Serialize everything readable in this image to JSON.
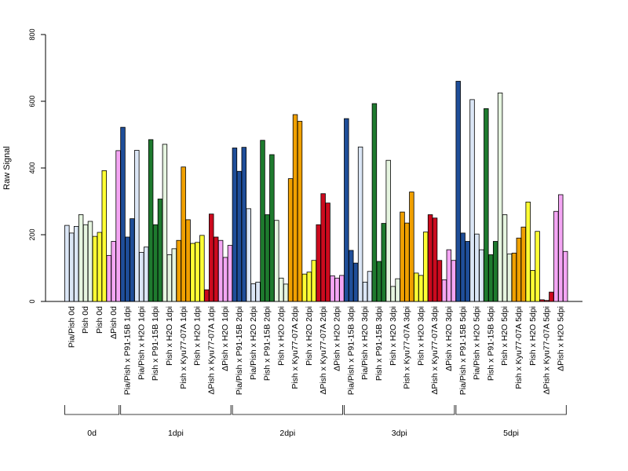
{
  "chart_data": {
    "type": "bar",
    "ylabel": "Raw Signal",
    "ylim": [
      0,
      800
    ],
    "yticks": [
      0,
      200,
      400,
      600,
      800
    ],
    "bars_per_group": 3,
    "groups": [
      {
        "label": "Pia/Pish 0d",
        "color": "#dbe6f6",
        "values": [
          228,
          205,
          225
        ]
      },
      {
        "label": "Pish 0d",
        "color": "#e6f5e0",
        "values": [
          260,
          230,
          240
        ]
      },
      {
        "label": "Pish 0d",
        "color": "#ffff33",
        "values": [
          195,
          207,
          392
        ]
      },
      {
        "label": "ΔPish 0d",
        "color": "#f4a6f4",
        "values": [
          138,
          180,
          452
        ]
      },
      {
        "label": "Pia/Pish x P91-15B 1dpi",
        "color": "#1f4e99",
        "values": [
          522,
          193,
          248
        ]
      },
      {
        "label": "Pia/Pish x H2O 1dpi",
        "color": "#dbe6f6",
        "values": [
          453,
          147,
          163
        ]
      },
      {
        "label": "Pish x P91-15B 1dpi",
        "color": "#1e7a2e",
        "values": [
          485,
          230,
          307
        ]
      },
      {
        "label": "Pish x H2O 1dpi",
        "color": "#e6f5e0",
        "values": [
          471,
          140,
          158
        ]
      },
      {
        "label": "Pish x Kyu77-07A 1dpi",
        "color": "#f0a000",
        "values": [
          183,
          403,
          245
        ]
      },
      {
        "label": "Pish x H2O 1dpi",
        "color": "#ffff33",
        "values": [
          174,
          177,
          198
        ]
      },
      {
        "label": "ΔPish x Kyu77-07A 1dpi",
        "color": "#cc0a1e",
        "values": [
          35,
          262,
          193
        ]
      },
      {
        "label": "ΔPish x H2O 1dpi",
        "color": "#f4a6f4",
        "values": [
          183,
          132,
          168
        ]
      },
      {
        "label": "Pia/Pish x P91-15B 2dpi",
        "color": "#1f4e99",
        "values": [
          460,
          390,
          462
        ]
      },
      {
        "label": "Pia/Pish x H2O 2dpi",
        "color": "#dbe6f6",
        "values": [
          278,
          53,
          58
        ]
      },
      {
        "label": "Pish x P91-15B 2dpi",
        "color": "#1e7a2e",
        "values": [
          483,
          260,
          440
        ]
      },
      {
        "label": "Pish x H2O 2dpi",
        "color": "#e6f5e0",
        "values": [
          243,
          70,
          52
        ]
      },
      {
        "label": "Pish x Kyu77-07A 2dpi",
        "color": "#f0a000",
        "values": [
          368,
          560,
          540
        ]
      },
      {
        "label": "Pish x H2O 2dpi",
        "color": "#ffff33",
        "values": [
          82,
          88,
          123
        ]
      },
      {
        "label": "ΔPish x Kyu77-07A 2dpi",
        "color": "#cc0a1e",
        "values": [
          230,
          323,
          295
        ]
      },
      {
        "label": "ΔPish x H2O 2dpi",
        "color": "#f4a6f4",
        "values": [
          77,
          70,
          78
        ]
      },
      {
        "label": "Pia/Pish x P91-15B 3dpi",
        "color": "#1f4e99",
        "values": [
          548,
          153,
          115
        ]
      },
      {
        "label": "Pia/Pish x H2O 3dpi",
        "color": "#dbe6f6",
        "values": [
          463,
          58,
          90
        ]
      },
      {
        "label": "Pish x P91-15B 3dpi",
        "color": "#1e7a2e",
        "values": [
          593,
          120,
          234
        ]
      },
      {
        "label": "Pish x H2O 3dpi",
        "color": "#e6f5e0",
        "values": [
          423,
          45,
          68
        ]
      },
      {
        "label": "Pish x Kyu77-07A 3dpi",
        "color": "#f0a000",
        "values": [
          268,
          235,
          328
        ]
      },
      {
        "label": "Pish x H2O 3dpi",
        "color": "#ffff33",
        "values": [
          85,
          78,
          208
        ]
      },
      {
        "label": "ΔPish x Kyu77-07A 3dpi",
        "color": "#cc0a1e",
        "values": [
          260,
          250,
          123
        ]
      },
      {
        "label": "ΔPish x H2O 3dpi",
        "color": "#f4a6f4",
        "values": [
          65,
          155,
          123
        ]
      },
      {
        "label": "Pia/Pish x P91-15B 5dpi",
        "color": "#1f4e99",
        "values": [
          660,
          205,
          180
        ]
      },
      {
        "label": "Pia/Pish x H2O 5dpi",
        "color": "#dbe6f6",
        "values": [
          605,
          202,
          155
        ]
      },
      {
        "label": "Pish x P91-15B 5dpi",
        "color": "#1e7a2e",
        "values": [
          578,
          140,
          180
        ]
      },
      {
        "label": "Pish x H2O 5dpi",
        "color": "#e6f5e0",
        "values": [
          625,
          260,
          142
        ]
      },
      {
        "label": "Pish x Kyu77-07A 5dpi",
        "color": "#f0a000",
        "values": [
          145,
          190,
          223
        ]
      },
      {
        "label": "Pish x H2O 5dpi",
        "color": "#ffff33",
        "values": [
          298,
          93,
          210
        ]
      },
      {
        "label": "ΔPish x Kyu77-07A 5dpi",
        "color": "#cc0a1e",
        "values": [
          5,
          3,
          28
        ]
      },
      {
        "label": "ΔPish x H2O 5dpi",
        "color": "#f4a6f4",
        "values": [
          270,
          320,
          150
        ]
      }
    ],
    "timepoints": [
      {
        "label": "0d",
        "first": 0,
        "last": 3
      },
      {
        "label": "1dpi",
        "first": 4,
        "last": 11
      },
      {
        "label": "2dpi",
        "first": 12,
        "last": 19
      },
      {
        "label": "3dpi",
        "first": 20,
        "last": 27
      },
      {
        "label": "5dpi",
        "first": 28,
        "last": 35
      }
    ]
  }
}
